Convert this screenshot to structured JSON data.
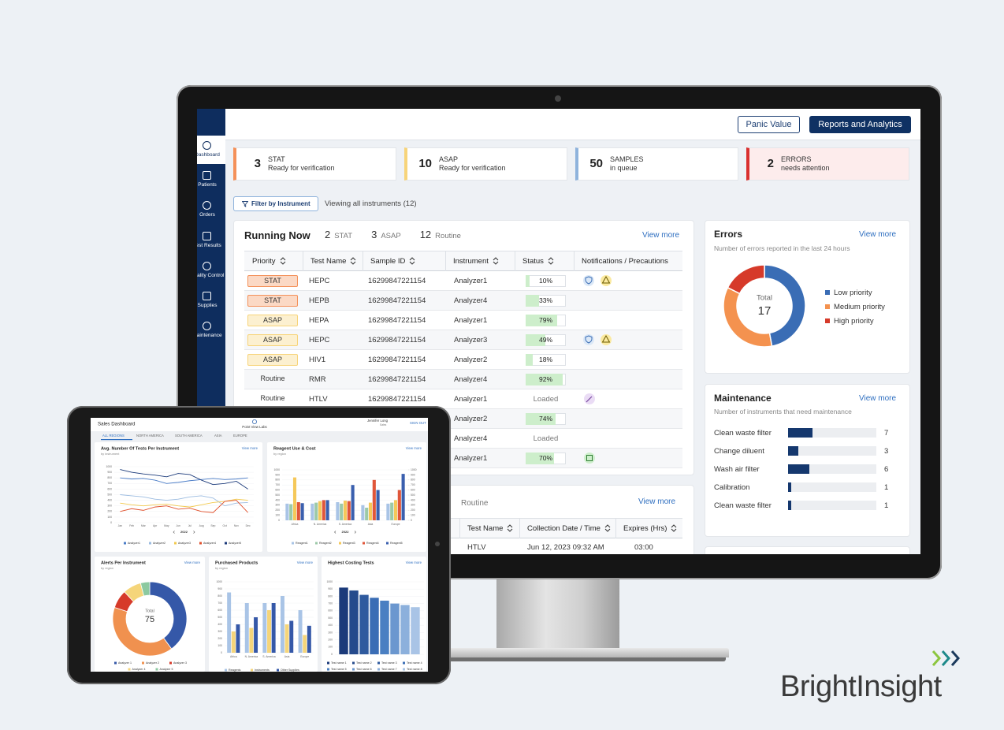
{
  "monitor": {
    "header": {
      "panic_button": "Panic Value",
      "reports_button": "Reports and Analytics"
    },
    "sidebar": [
      "Dashboard",
      "Patients",
      "Orders",
      "Test Results",
      "Quality Control",
      "Supplies",
      "Maintenance"
    ],
    "summary_cards": [
      {
        "count": 3,
        "label": "STAT",
        "detail": "Ready for verification",
        "color": "#f4915a"
      },
      {
        "count": 10,
        "label": "ASAP",
        "detail": "Ready for verification",
        "color": "#f7d47a"
      },
      {
        "count": 50,
        "label": "SAMPLES",
        "detail": "in queue",
        "color": "#8fb3dc"
      },
      {
        "count": 2,
        "label": "ERRORS",
        "detail": "needs attention",
        "color": "#d9302f"
      }
    ],
    "filter_button": "Filter by Instrument",
    "filter_status": "Viewing all instruments (12)",
    "running_now": {
      "title": "Running Now",
      "counts": [
        {
          "count": 2,
          "label": "STAT"
        },
        {
          "count": 3,
          "label": "ASAP"
        },
        {
          "count": 12,
          "label": "Routine"
        }
      ],
      "view_more": "View more",
      "columns": [
        "Priority",
        "Test Name",
        "Sample ID",
        "Instrument",
        "Status",
        "Notifications / Precautions"
      ],
      "status_scale": [
        0,
        100
      ],
      "status_color": "#cdeecb",
      "rows": [
        {
          "priority": "STAT",
          "test": "HEPC",
          "sample_id": "16299847221154",
          "instrument": "Analyzer1",
          "status": {
            "value": 10,
            "label": "10%"
          }
        },
        {
          "priority": "STAT",
          "test": "HEPB",
          "sample_id": "16299847221154",
          "instrument": "Analyzer4",
          "status": {
            "value": 33,
            "label": "33%"
          }
        },
        {
          "priority": "ASAP",
          "test": "HEPA",
          "sample_id": "16299847221154",
          "instrument": "Analyzer1",
          "status": {
            "value": 79,
            "label": "79%"
          }
        },
        {
          "priority": "ASAP",
          "test": "HEPC",
          "sample_id": "16299847221154",
          "instrument": "Analyzer3",
          "status": {
            "value": 49,
            "label": "49%"
          }
        },
        {
          "priority": "ASAP",
          "test": "HIV1",
          "sample_id": "16299847221154",
          "instrument": "Analyzer2",
          "status": {
            "value": 18,
            "label": "18%"
          }
        },
        {
          "priority": "Routine",
          "test": "RMR",
          "sample_id": "16299847221154",
          "instrument": "Analyzer4",
          "status": {
            "value": 92,
            "label": "92%"
          }
        },
        {
          "priority": "Routine",
          "test": "HTLV",
          "sample_id": "16299847221154",
          "instrument": "Analyzer1",
          "status": "Loaded"
        },
        {
          "instrument": "Analyzer2",
          "status": {
            "value": 74,
            "label": "74%"
          }
        },
        {
          "instrument": "Analyzer4",
          "status": "Loaded"
        },
        {
          "instrument": "Analyzer1",
          "status": {
            "value": 70,
            "label": "70%"
          }
        }
      ]
    },
    "routine_panel": {
      "label": "Routine",
      "view_more": "View more",
      "columns": [
        "Test Name",
        "Collection Date / Time",
        "Expires (Hrs)"
      ],
      "rows": [
        [
          "HTLV",
          "Jun 12, 2023 09:32 AM",
          "03:00"
        ]
      ]
    },
    "errors": {
      "title": "Errors",
      "view_more": "View more",
      "subtitle": "Number of errors reported in the last 24 hours",
      "total_label": "Total",
      "total": 17,
      "series": [
        {
          "name": "Low priority",
          "color": "#3a6db5",
          "value": 8
        },
        {
          "name": "Medium priority",
          "color": "#f4924f",
          "value": 6
        },
        {
          "name": "High priority",
          "color": "#d63a2a",
          "value": 3
        }
      ]
    },
    "maintenance": {
      "title": "Maintenance",
      "view_more": "View more",
      "subtitle": "Number of instruments that need maintenance",
      "xlim": [
        0,
        25
      ],
      "color": "#15386e",
      "items": [
        {
          "name": "Clean waste filter",
          "value": 7
        },
        {
          "name": "Change diluent",
          "value": 3
        },
        {
          "name": "Wash air filter",
          "value": 6
        },
        {
          "name": "Calibration",
          "value": 1
        },
        {
          "name": "Clean waste filter",
          "value": 1
        }
      ]
    }
  },
  "tablet": {
    "title": "Sales Dashboard",
    "org": "Point View Labs",
    "user": "Jennifer Long",
    "role": "Sales",
    "sign_out": "SIGN OUT",
    "tabs": [
      "ALL REGIONS",
      "NORTH AMERICA",
      "SOUTH AMERICA",
      "ASIA",
      "EUROPE"
    ],
    "charts": [
      {
        "type": "line",
        "title": "Avg. Number Of Tests Per Instrument",
        "subtitle": "by instrument",
        "view_more": "View more",
        "categories": [
          "Jan",
          "Feb",
          "Mar",
          "Apr",
          "May",
          "Jun",
          "Jul",
          "Aug",
          "Sep",
          "Oct",
          "Nov",
          "Dec"
        ],
        "ylim": [
          0,
          1000
        ],
        "yticks": [
          0,
          100,
          200,
          300,
          400,
          500,
          600,
          700,
          800,
          900,
          1000
        ],
        "year": "2022",
        "series": [
          {
            "name": "Analyzer1",
            "color": "#4a7cc7",
            "values": [
              800,
              780,
              790,
              760,
              700,
              720,
              750,
              770,
              790,
              770,
              780,
              800
            ]
          },
          {
            "name": "Analyzer2",
            "color": "#9bbbe0",
            "values": [
              500,
              480,
              460,
              420,
              400,
              420,
              460,
              480,
              440,
              300,
              350,
              360
            ]
          },
          {
            "name": "Analyzer3",
            "color": "#f2c94c",
            "values": [
              350,
              320,
              300,
              320,
              330,
              300,
              280,
              320,
              360,
              380,
              420,
              400
            ]
          },
          {
            "name": "Analyzer4",
            "color": "#e0502c",
            "values": [
              200,
              250,
              220,
              280,
              300,
              240,
              260,
              200,
              180,
              380,
              400,
              180
            ]
          },
          {
            "name": "Analyzer5",
            "color": "#1b3a7a",
            "values": [
              950,
              900,
              870,
              850,
              820,
              880,
              860,
              760,
              680,
              700,
              740,
              600
            ]
          }
        ]
      },
      {
        "type": "bar",
        "title": "Reagent Use & Cost",
        "subtitle": "by region",
        "view_more": "View more",
        "categories": [
          "Africa",
          "N. America",
          "S. America",
          "Asia",
          "Europe"
        ],
        "ylim": [
          0,
          1000
        ],
        "yticks": [
          0,
          100,
          200,
          300,
          400,
          500,
          600,
          700,
          800,
          900,
          1000
        ],
        "y2lim": [
          0,
          1000
        ],
        "y2ticks": [
          0,
          100,
          200,
          300,
          400,
          500,
          600,
          700,
          800,
          900,
          1000
        ],
        "year": "2022",
        "series": [
          {
            "name": "Reagent1",
            "color": "#a9c4e6",
            "values": [
              330,
              330,
              360,
              300,
              330
            ]
          },
          {
            "name": "Reagent2",
            "color": "#9cc9a8",
            "values": [
              320,
              350,
              330,
              250,
              350
            ]
          },
          {
            "name": "Reagent3",
            "color": "#f5c85a",
            "values": [
              850,
              380,
              390,
              350,
              400
            ]
          },
          {
            "name": "Reagent4",
            "color": "#e0563a",
            "values": [
              360,
              400,
              380,
              800,
              600
            ]
          },
          {
            "name": "Reagent5",
            "color": "#3a5fae",
            "values": [
              340,
              400,
              700,
              600,
              920
            ]
          }
        ]
      },
      {
        "type": "pie",
        "title": "Alerts Per Instrument",
        "subtitle": "by region",
        "view_more": "View more",
        "total_label": "Total",
        "total": 75,
        "series": [
          {
            "name": "Analyzer 1",
            "color": "#3558a8",
            "value": 30
          },
          {
            "name": "Analyzer 2",
            "color": "#f0914f",
            "value": 30
          },
          {
            "name": "Analyzer 3",
            "color": "#d63a2a",
            "value": 6
          },
          {
            "name": "Analyzer 4",
            "color": "#f5d57a",
            "value": 6
          },
          {
            "name": "Analyzer 5",
            "color": "#8cc9a0",
            "value": 3
          }
        ]
      },
      {
        "type": "bar",
        "title": "Purchased Products",
        "subtitle": "by region",
        "view_more": "View more",
        "categories": [
          "Africa",
          "N. America",
          "S. America",
          "Asia",
          "Europe"
        ],
        "ylim": [
          0,
          1000
        ],
        "yticks": [
          0,
          100,
          200,
          300,
          400,
          500,
          600,
          700,
          800,
          900,
          1000
        ],
        "series": [
          {
            "name": "Reagents",
            "color": "#a9c4e6",
            "values": [
              850,
              700,
              700,
              800,
              600
            ]
          },
          {
            "name": "Instruments",
            "color": "#f5d57a",
            "values": [
              300,
              350,
              600,
              400,
              250
            ]
          },
          {
            "name": "Other Supplies",
            "color": "#3558a8",
            "values": [
              400,
              500,
              700,
              450,
              380
            ]
          }
        ]
      },
      {
        "type": "bar",
        "title": "Highest Costing Tests",
        "view_more": "View more",
        "categories": [
          null
        ],
        "ylim": [
          0,
          1000
        ],
        "yticks": [
          0,
          100,
          200,
          300,
          400,
          500,
          600,
          700,
          800,
          900,
          1000
        ],
        "series": [
          {
            "name": "Test name 1",
            "color": "#1b3a7a",
            "values": [
              920
            ]
          },
          {
            "name": "Test name 2",
            "color": "#244a8c",
            "values": [
              880
            ]
          },
          {
            "name": "Test name 3",
            "color": "#2f5a9e",
            "values": [
              820
            ]
          },
          {
            "name": "Test name 4",
            "color": "#3a6db5",
            "values": [
              780
            ]
          },
          {
            "name": "Test name 5",
            "color": "#4a7fc2",
            "values": [
              740
            ]
          },
          {
            "name": "Test name 6",
            "color": "#6b97cf",
            "values": [
              700
            ]
          },
          {
            "name": "Test name 7",
            "color": "#8cb0dc",
            "values": [
              680
            ]
          },
          {
            "name": "Test name 8",
            "color": "#a9c4e6",
            "values": [
              650
            ]
          }
        ]
      }
    ]
  },
  "brand": {
    "name": "BrightInsight"
  }
}
